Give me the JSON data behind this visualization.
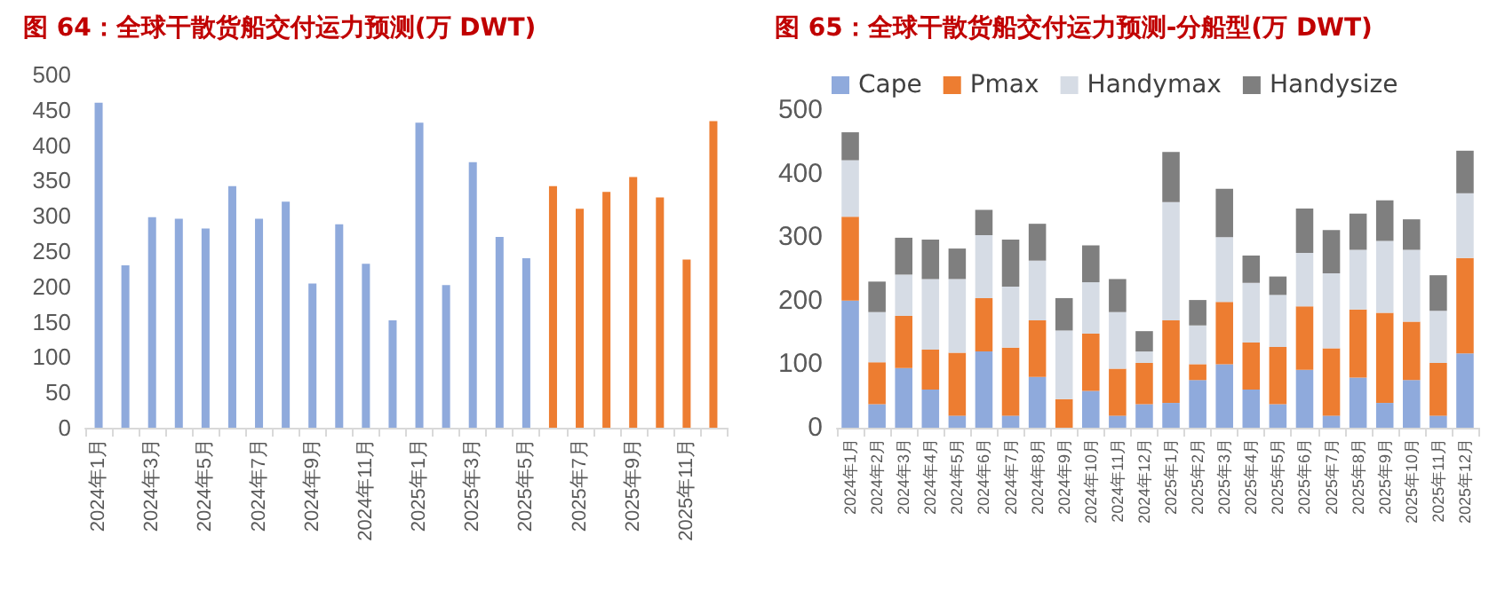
{
  "chart_data": [
    {
      "type": "bar",
      "title": "图 64：全球干散货船交付运力预测(万 DWT)",
      "categories": [
        "2024年1月",
        null,
        "2024年3月",
        null,
        "2024年5月",
        null,
        "2024年7月",
        null,
        "2024年9月",
        null,
        "2024年11月",
        null,
        "2025年1月",
        null,
        "2025年3月",
        null,
        "2025年5月",
        null,
        "2025年7月",
        null,
        "2025年9月",
        null,
        "2025年11月",
        null
      ],
      "values": [
        460,
        230,
        298,
        296,
        282,
        342,
        296,
        320,
        204,
        288,
        232,
        152,
        432,
        202,
        376,
        270,
        240,
        342,
        310,
        334,
        355,
        326,
        238,
        434
      ],
      "colors": [
        "#8faadc",
        "#8faadc",
        "#8faadc",
        "#8faadc",
        "#8faadc",
        "#8faadc",
        "#8faadc",
        "#8faadc",
        "#8faadc",
        "#8faadc",
        "#8faadc",
        "#8faadc",
        "#8faadc",
        "#8faadc",
        "#8faadc",
        "#8faadc",
        "#8faadc",
        "#ed7d31",
        "#ed7d31",
        "#ed7d31",
        "#ed7d31",
        "#ed7d31",
        "#ed7d31",
        "#ed7d31"
      ],
      "ylim": [
        0,
        500
      ],
      "yticks": [
        0,
        50,
        100,
        150,
        200,
        250,
        300,
        350,
        400,
        450,
        500
      ],
      "grid": false,
      "legend": false
    },
    {
      "type": "bar",
      "title": "图 65：全球干散货船交付运力预测-分船型(万 DWT)",
      "stacked": true,
      "categories": [
        "2024年1月",
        "2024年2月",
        "2024年3月",
        "2024年4月",
        "2024年5月",
        "2024年6月",
        "2024年7月",
        "2024年8月",
        "2024年9月",
        "2024年10月",
        "2024年11月",
        "2024年12月",
        "2025年1月",
        "2025年2月",
        "2025年3月",
        "2025年4月",
        "2025年5月",
        "2025年6月",
        "2025年7月",
        "2025年8月",
        "2025年9月",
        "2025年10月",
        "2025年11月",
        "2025年12月"
      ],
      "series": [
        {
          "name": "Cape",
          "color": "#8faadc",
          "values": [
            200,
            37,
            94,
            60,
            19,
            120,
            19,
            80,
            0,
            58,
            19,
            37,
            39,
            75,
            100,
            60,
            37,
            91,
            19,
            79,
            39,
            75,
            19,
            117
          ]
        },
        {
          "name": "Pmax",
          "color": "#ed7d31",
          "values": [
            132,
            66,
            82,
            63,
            99,
            84,
            107,
            89,
            45,
            90,
            74,
            65,
            130,
            25,
            98,
            74,
            90,
            100,
            106,
            107,
            142,
            92,
            83,
            150
          ]
        },
        {
          "name": "Handymax",
          "color": "#d6dce5",
          "values": [
            89,
            79,
            65,
            111,
            116,
            99,
            96,
            94,
            108,
            81,
            89,
            18,
            186,
            61,
            102,
            94,
            82,
            84,
            118,
            94,
            113,
            113,
            82,
            102
          ]
        },
        {
          "name": "Handysize",
          "color": "#7f7f7f",
          "values": [
            44,
            48,
            58,
            62,
            48,
            40,
            74,
            58,
            51,
            58,
            52,
            32,
            79,
            40,
            76,
            43,
            29,
            70,
            68,
            57,
            64,
            48,
            56,
            67
          ]
        }
      ],
      "ylim": [
        0,
        500
      ],
      "yticks": [
        0,
        100,
        200,
        300,
        400,
        500
      ],
      "grid": false,
      "legend": "top"
    }
  ]
}
